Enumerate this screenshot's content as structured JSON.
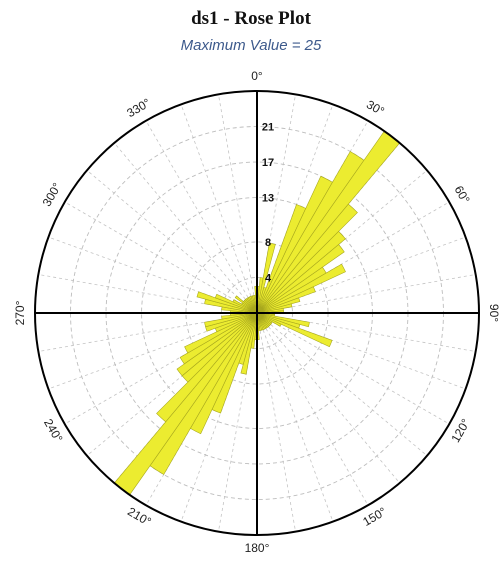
{
  "chart_data": {
    "type": "rose",
    "title": "ds1 - Rose Plot",
    "subtitle": "Maximum Value = 25",
    "bin_width_deg": 5,
    "rmax": 25,
    "ring_values": [
      4,
      8,
      13,
      17,
      21
    ],
    "angle_labels": [
      "0°",
      "30°",
      "60°",
      "90°",
      "120°",
      "150°",
      "180°",
      "210°",
      "240°",
      "270°",
      "300°",
      "330°"
    ],
    "bins_start_deg": [
      0,
      5,
      10,
      15,
      20,
      25,
      30,
      35,
      40,
      45,
      50,
      55,
      60,
      65,
      70,
      75,
      80,
      85,
      90,
      95,
      100,
      105,
      110,
      115,
      120,
      125,
      130,
      135,
      140,
      145,
      150,
      155,
      160,
      165,
      170,
      175,
      180,
      185,
      190,
      195,
      200,
      205,
      210,
      215,
      220,
      225,
      230,
      235,
      240,
      245,
      250,
      255,
      260,
      265,
      270,
      275,
      280,
      285,
      290,
      295,
      300,
      305,
      310,
      315,
      320,
      325,
      330,
      335,
      340,
      345,
      350,
      355
    ],
    "values": [
      3,
      4,
      8,
      3,
      13,
      17,
      21,
      25,
      16,
      13,
      12,
      9,
      11,
      7,
      5,
      4,
      3,
      3,
      2,
      2,
      6,
      5,
      9,
      3,
      2,
      2,
      2,
      2,
      2,
      2,
      2,
      2,
      2,
      2,
      2,
      3,
      3,
      4,
      7,
      6,
      12,
      15,
      21,
      25,
      16,
      11,
      11,
      10,
      9,
      5,
      6,
      6,
      4,
      3,
      3,
      4,
      6,
      7,
      5,
      3,
      2,
      3,
      2,
      2,
      2,
      2,
      2,
      2,
      2,
      2,
      2,
      3
    ],
    "fill_color": "#ecec30",
    "stroke_color": "#a8a81e",
    "grid": true
  }
}
